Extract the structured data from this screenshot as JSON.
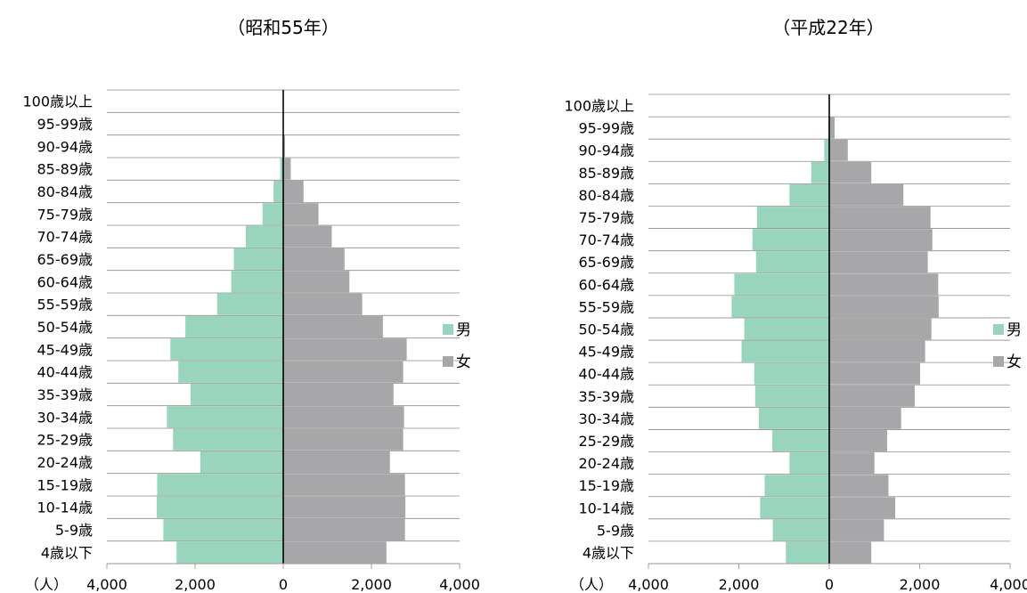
{
  "unit_label": "（人）",
  "legend": {
    "male_label": "男",
    "female_label": "女",
    "male_color": "#99d5bd",
    "female_color": "#a7a6a9"
  },
  "chart_data": [
    {
      "type": "bar",
      "title": "（昭和55年）",
      "categories": [
        "100歳以上",
        "95-99歳",
        "90-94歳",
        "85-89歳",
        "80-84歳",
        "75-79歳",
        "70-74歳",
        "65-69歳",
        "60-64歳",
        "55-59歳",
        "50-54歳",
        "45-49歳",
        "40-44歳",
        "35-39歳",
        "30-34歳",
        "25-29歳",
        "20-24歳",
        "15-19歳",
        "10-14歳",
        "5-9歳",
        "4歳以下"
      ],
      "series": [
        {
          "name": "男",
          "values": [
            0,
            0,
            10,
            70,
            220,
            470,
            850,
            1120,
            1180,
            1500,
            2220,
            2560,
            2380,
            2100,
            2640,
            2500,
            1880,
            2860,
            2870,
            2720,
            2420
          ]
        },
        {
          "name": "女",
          "values": [
            0,
            10,
            40,
            170,
            460,
            800,
            1100,
            1390,
            1500,
            1790,
            2260,
            2800,
            2720,
            2500,
            2740,
            2720,
            2420,
            2760,
            2770,
            2760,
            2340
          ]
        }
      ],
      "xlim": [
        -4000,
        4000
      ],
      "xticks": [
        -4000,
        -2000,
        0,
        2000,
        4000
      ],
      "xtick_labels": [
        "4,000",
        "2,000",
        "0",
        "2,000",
        "4,000"
      ],
      "grid": true,
      "legend_position": "right"
    },
    {
      "type": "bar",
      "title": "（平成22年）",
      "categories": [
        "100歳以上",
        "95-99歳",
        "90-94歳",
        "85-89歳",
        "80-84歳",
        "75-79歳",
        "70-74歳",
        "65-69歳",
        "60-64歳",
        "55-59歳",
        "50-54歳",
        "45-49歳",
        "40-44歳",
        "35-39歳",
        "30-34歳",
        "25-29歳",
        "20-24歳",
        "15-19歳",
        "10-14歳",
        "5-9歳",
        "4歳以下"
      ],
      "series": [
        {
          "name": "男",
          "values": [
            0,
            20,
            110,
            400,
            880,
            1600,
            1700,
            1620,
            2100,
            2160,
            1880,
            1940,
            1660,
            1640,
            1560,
            1260,
            880,
            1430,
            1530,
            1250,
            960
          ]
        },
        {
          "name": "女",
          "values": [
            10,
            120,
            410,
            930,
            1640,
            2240,
            2280,
            2180,
            2410,
            2420,
            2260,
            2120,
            2010,
            1890,
            1590,
            1280,
            1000,
            1310,
            1460,
            1210,
            930
          ]
        }
      ],
      "xlim": [
        -4000,
        4000
      ],
      "xticks": [
        -4000,
        -2000,
        0,
        2000,
        4000
      ],
      "xtick_labels": [
        "4,000",
        "2,000",
        "0",
        "2,000",
        "4,000"
      ],
      "grid": true,
      "legend_position": "right"
    }
  ]
}
